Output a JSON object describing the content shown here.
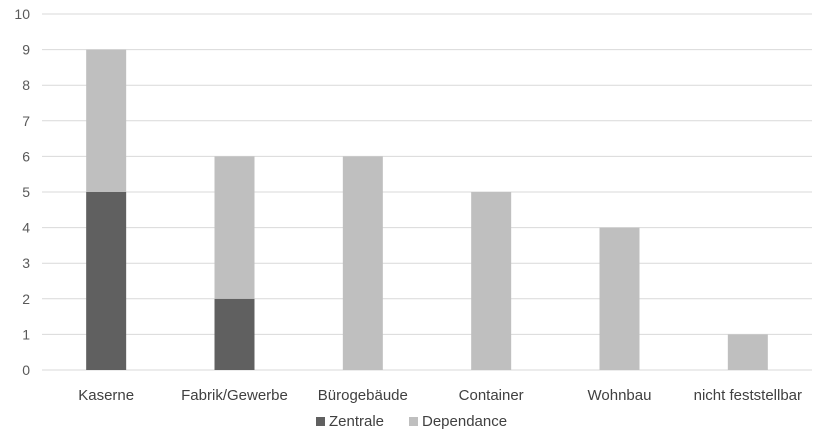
{
  "chart_data": {
    "type": "bar",
    "stacked": true,
    "categories": [
      "Kaserne",
      "Fabrik/Gewerbe",
      "Bürogebäude",
      "Container",
      "Wohnbau",
      "nicht feststellbar"
    ],
    "series": [
      {
        "name": "Zentrale",
        "values": [
          5,
          2,
          0,
          0,
          0,
          0
        ],
        "color": "#606060"
      },
      {
        "name": "Dependance",
        "values": [
          4,
          4,
          6,
          5,
          4,
          1
        ],
        "color": "#bfbfbf"
      }
    ],
    "ylim": [
      0,
      10
    ],
    "yticks": [
      "0",
      "1",
      "2",
      "3",
      "4",
      "5",
      "6",
      "7",
      "8",
      "9",
      "10"
    ],
    "grid": true,
    "legend_position": "bottom",
    "gridline_color": "#d9d9d9"
  }
}
